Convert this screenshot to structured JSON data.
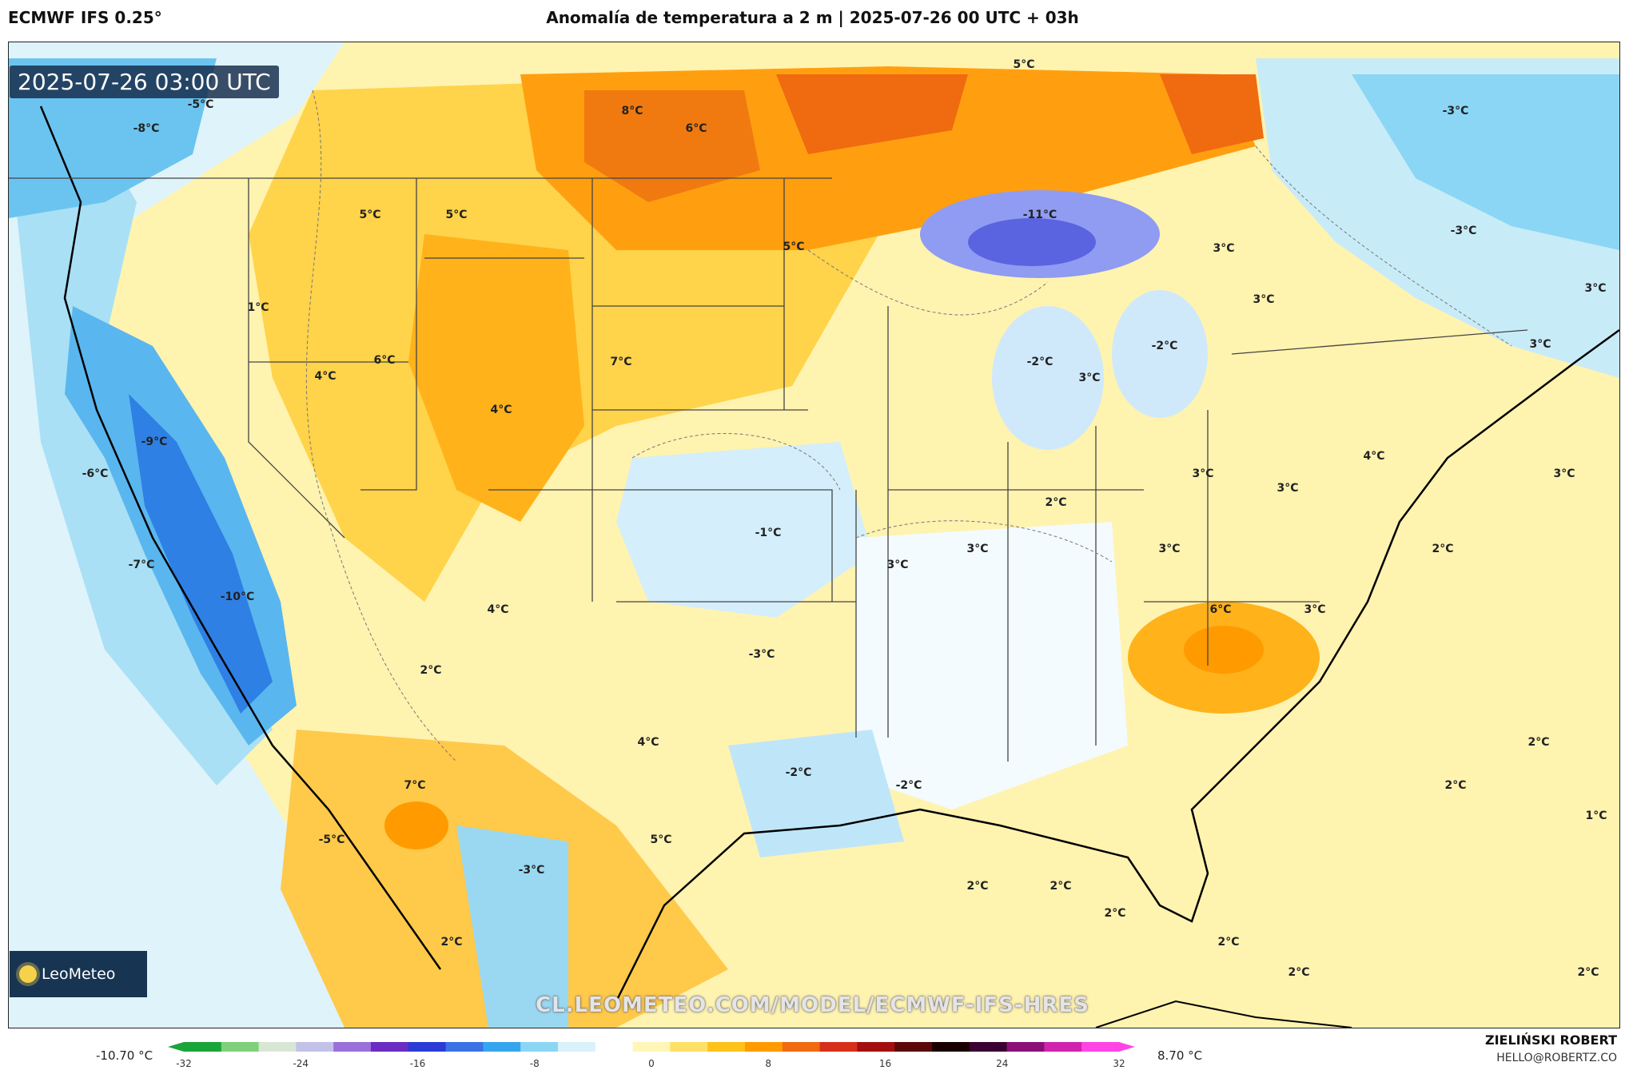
{
  "header": {
    "model": "ECMWF IFS 0.25°",
    "title": "Anomalía de temperatura a 2 m | 2025-07-26 00 UTC + 03h"
  },
  "map": {
    "timestamp": "2025-07-26 03:00 UTC",
    "labels": [
      {
        "text": "-8°C"
      },
      {
        "text": "-5°C"
      },
      {
        "text": "8°C"
      },
      {
        "text": "6°C"
      },
      {
        "text": "5°C"
      },
      {
        "text": "-3°C"
      },
      {
        "text": "5°C"
      },
      {
        "text": "5°C"
      },
      {
        "text": "-11°C"
      },
      {
        "text": "5°C"
      },
      {
        "text": "3°C"
      },
      {
        "text": "-3°C"
      },
      {
        "text": "1°C"
      },
      {
        "text": "3°C"
      },
      {
        "text": "3°C"
      },
      {
        "text": "6°C"
      },
      {
        "text": "7°C"
      },
      {
        "text": "-2°C"
      },
      {
        "text": "-2°C"
      },
      {
        "text": "3°C"
      },
      {
        "text": "3°C"
      },
      {
        "text": "4°C"
      },
      {
        "text": "4°C"
      },
      {
        "text": "-9°C"
      },
      {
        "text": "-6°C"
      },
      {
        "text": "4°C"
      },
      {
        "text": "3°C"
      },
      {
        "text": "3°C"
      },
      {
        "text": "3°C"
      },
      {
        "text": "2°C"
      },
      {
        "text": "-1°C"
      },
      {
        "text": "-7°C"
      },
      {
        "text": "3°C"
      },
      {
        "text": "3°C"
      },
      {
        "text": "3°C"
      },
      {
        "text": "2°C"
      },
      {
        "text": "-10°C"
      },
      {
        "text": "4°C"
      },
      {
        "text": "6°C"
      },
      {
        "text": "3°C"
      },
      {
        "text": "-3°C"
      },
      {
        "text": "2°C"
      },
      {
        "text": "4°C"
      },
      {
        "text": "2°C"
      },
      {
        "text": "-2°C"
      },
      {
        "text": "-2°C"
      },
      {
        "text": "7°C"
      },
      {
        "text": "2°C"
      },
      {
        "text": "1°C"
      },
      {
        "text": "-5°C"
      },
      {
        "text": "5°C"
      },
      {
        "text": "-3°C"
      },
      {
        "text": "2°C"
      },
      {
        "text": "2°C"
      },
      {
        "text": "2°C"
      },
      {
        "text": "2°C"
      },
      {
        "text": "2°C"
      },
      {
        "text": "2°C"
      },
      {
        "text": "2°C"
      }
    ]
  },
  "branding": {
    "logo": "LeoMeteo",
    "watermark": "CL.LEOMETEO.COM/MODEL/ECMWF-IFS-HRES",
    "author": "ZIELIŃSKI ROBERT",
    "email": "HELLO@ROBERTZ.CO"
  },
  "colorbar": {
    "min_label": "-10.70 °C",
    "max_label": "8.70 °C",
    "ticks": [
      "-32",
      "-24",
      "-16",
      "-8",
      "0",
      "8",
      "16",
      "24",
      "32"
    ],
    "colors": [
      "#19a53a",
      "#7fd07a",
      "#d7e7d4",
      "#c2c2e8",
      "#9b6fd9",
      "#6b2cc2",
      "#2b3bd6",
      "#3a73e6",
      "#35a6ee",
      "#8bd6f5",
      "#d9f1fb",
      "#ffffff",
      "#fff6b8",
      "#ffe066",
      "#ffc21a",
      "#ff9a00",
      "#f06a10",
      "#d6301a",
      "#a30f0f",
      "#5a0808",
      "#1a0000",
      "#3a0033",
      "#8a1078",
      "#d023b0",
      "#ff44e6"
    ]
  }
}
